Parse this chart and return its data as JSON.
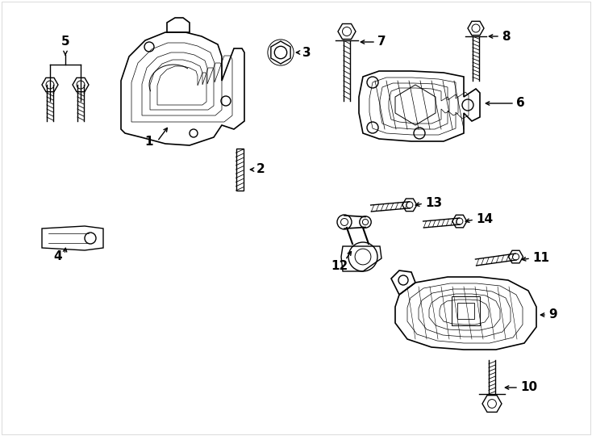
{
  "bg_color": "#ffffff",
  "line_color": "#000000",
  "fig_width": 7.34,
  "fig_height": 5.4,
  "dpi": 100,
  "label_fontsize": 11,
  "lw": 1.0
}
